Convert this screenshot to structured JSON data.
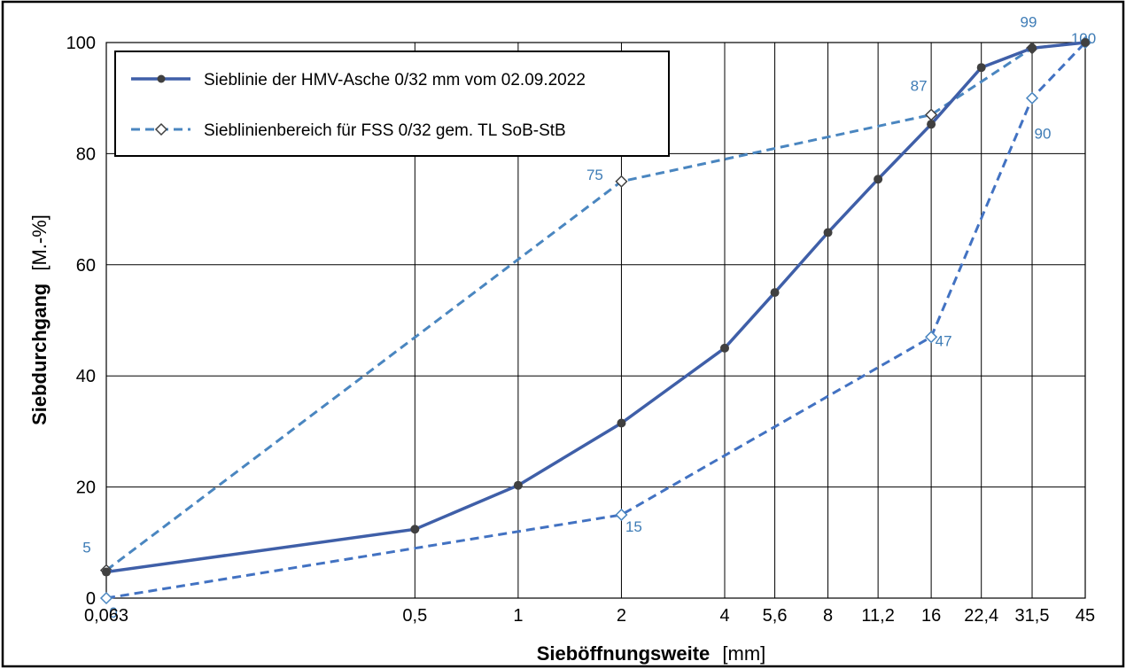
{
  "chart_data": {
    "type": "line",
    "title": "",
    "xlabel": "Sieböffnungsweite",
    "xlabel_unit": "[mm]",
    "ylabel": "Siebdurchgang",
    "ylabel_unit": "[M.-%]",
    "x_scale": "log",
    "x_ticks": [
      "0,063",
      "0,5",
      "1",
      "2",
      "4",
      "5,6",
      "8",
      "11,2",
      "16",
      "22,4",
      "31,5",
      "45"
    ],
    "x_tick_values": [
      0.063,
      0.5,
      1,
      2,
      4,
      5.6,
      8,
      11.2,
      16,
      22.4,
      31.5,
      45
    ],
    "y_ticks": [
      "0",
      "20",
      "40",
      "60",
      "80",
      "100"
    ],
    "ylim": [
      0,
      100
    ],
    "grid": true,
    "legend_position": "top-left",
    "series": [
      {
        "name": "Sieblinie der HMV-Asche 0/32 mm vom 02.09.2022",
        "style": "solid",
        "marker": "circle",
        "color": "#3F5FA8",
        "x": [
          0.063,
          0.5,
          1,
          2,
          4,
          5.6,
          8,
          11.2,
          16,
          22.4,
          31.5,
          45
        ],
        "y": [
          4.7,
          12.4,
          20.3,
          31.5,
          45,
          55,
          65.8,
          75.4,
          85.3,
          95.5,
          99,
          100
        ]
      },
      {
        "name": "Sieblinienbereich für FSS 0/32 gem. TL SoB-StB",
        "style": "dashed",
        "marker": "diamond",
        "color": "#4A86C0",
        "x": [
          0.063,
          2,
          16,
          31.5,
          45
        ],
        "y": [
          5,
          75,
          87,
          99,
          100
        ],
        "labels": [
          "5",
          "75",
          "87",
          "99",
          "100"
        ]
      },
      {
        "style": "dashed",
        "marker": "diamond",
        "color": "#4272C2",
        "x": [
          0.063,
          2,
          16,
          31.5,
          45
        ],
        "y": [
          0,
          15,
          47,
          90,
          100
        ],
        "labels": [
          "0",
          "15",
          "47",
          "90",
          ""
        ]
      }
    ]
  }
}
